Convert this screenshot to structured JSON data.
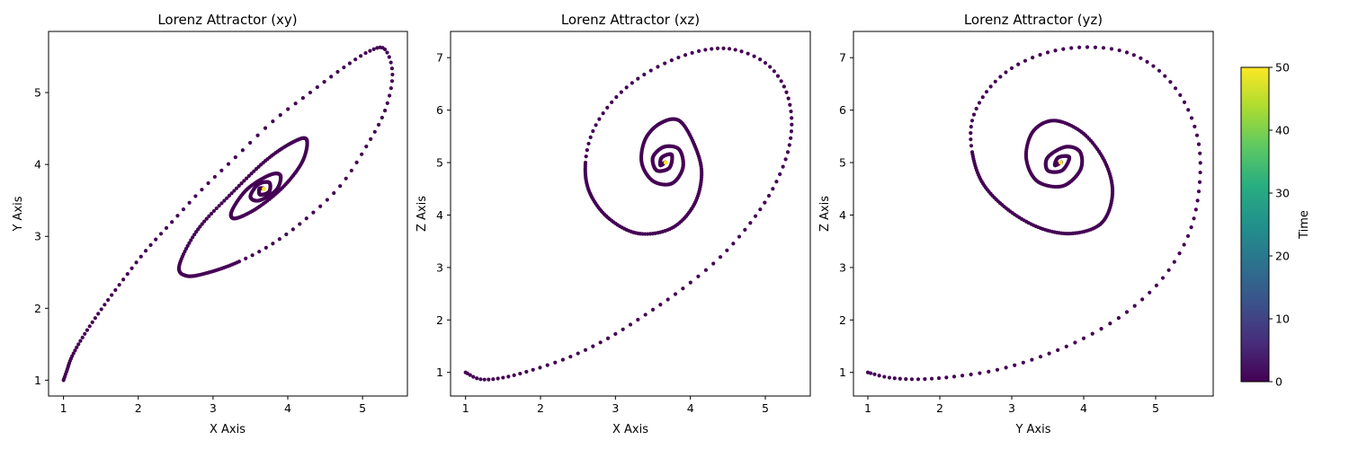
{
  "chart_data": [
    {
      "type": "scatter",
      "title": "Lorenz Attractor (xy)",
      "xlabel": "X Axis",
      "ylabel": "Y Axis",
      "xlim": [
        0.8,
        5.6
      ],
      "ylim": [
        0.78,
        5.85
      ],
      "xticks": [
        "1",
        "2",
        "3",
        "4",
        "5"
      ],
      "yticks": [
        "1",
        "2",
        "3",
        "4",
        "5"
      ],
      "x": [
        1.0,
        1.05,
        1.1,
        1.2,
        1.35,
        1.55,
        1.8,
        2.1,
        2.45,
        2.85,
        3.3,
        3.8,
        4.3,
        4.75,
        5.1,
        5.3,
        5.4,
        5.3,
        5.05,
        4.7,
        4.25,
        3.8,
        3.35,
        2.95,
        2.65,
        2.55,
        2.8,
        3.25,
        3.7,
        4.05,
        4.25,
        4.2,
        3.95,
        3.6,
        3.3,
        3.25,
        3.45,
        3.75,
        3.9,
        3.85,
        3.62,
        3.5,
        3.6,
        3.75,
        3.75,
        3.63,
        3.62,
        3.66,
        3.68
      ],
      "y": [
        1.0,
        1.15,
        1.3,
        1.5,
        1.75,
        2.05,
        2.4,
        2.8,
        3.2,
        3.65,
        4.1,
        4.6,
        5.0,
        5.35,
        5.58,
        5.6,
        5.25,
        4.75,
        4.25,
        3.7,
        3.25,
        2.9,
        2.65,
        2.5,
        2.45,
        2.6,
        3.1,
        3.6,
        4.05,
        4.3,
        4.35,
        4.05,
        3.7,
        3.4,
        3.25,
        3.35,
        3.65,
        3.85,
        3.85,
        3.65,
        3.5,
        3.55,
        3.72,
        3.75,
        3.62,
        3.58,
        3.66,
        3.67,
        3.66
      ],
      "color_var": "Time"
    },
    {
      "type": "scatter",
      "title": "Lorenz Attractor (xz)",
      "xlabel": "X Axis",
      "ylabel": "Z Axis",
      "xlim": [
        0.8,
        5.6
      ],
      "ylim": [
        0.55,
        7.5
      ],
      "xticks": [
        "1",
        "2",
        "3",
        "4",
        "5"
      ],
      "yticks": [
        "1",
        "2",
        "3",
        "4",
        "5",
        "6",
        "7"
      ],
      "x": [
        1.0,
        1.2,
        1.5,
        1.9,
        2.4,
        2.9,
        3.4,
        3.9,
        4.4,
        4.8,
        5.1,
        5.3,
        5.35,
        5.25,
        5.0,
        4.6,
        4.2,
        3.75,
        3.3,
        2.95,
        2.7,
        2.6,
        2.65,
        2.9,
        3.3,
        3.75,
        4.05,
        4.15,
        4.05,
        3.85,
        3.6,
        3.4,
        3.35,
        3.5,
        3.75,
        3.9,
        3.85,
        3.65,
        3.5,
        3.55,
        3.72,
        3.75,
        3.62,
        3.6,
        3.66,
        3.67
      ],
      "y": [
        1.0,
        0.87,
        0.9,
        1.05,
        1.3,
        1.65,
        2.1,
        2.6,
        3.2,
        3.85,
        4.5,
        5.2,
        5.85,
        6.45,
        6.9,
        7.15,
        7.15,
        6.95,
        6.6,
        6.15,
        5.6,
        5.0,
        4.45,
        3.95,
        3.65,
        3.75,
        4.2,
        4.8,
        5.35,
        5.8,
        5.75,
        5.45,
        5.0,
        4.65,
        4.6,
        4.9,
        5.25,
        5.3,
        5.1,
        4.85,
        4.9,
        5.15,
        5.1,
        4.95,
        5.0,
        5.0
      ],
      "color_var": "Time"
    },
    {
      "type": "scatter",
      "title": "Lorenz Attractor (yz)",
      "xlabel": "Y Axis",
      "ylabel": "Z Axis",
      "xlim": [
        0.8,
        5.8
      ],
      "ylim": [
        0.55,
        7.5
      ],
      "xticks": [
        "1",
        "2",
        "3",
        "4",
        "5"
      ],
      "yticks": [
        "1",
        "2",
        "3",
        "4",
        "5",
        "6",
        "7"
      ],
      "x": [
        1.0,
        1.3,
        1.7,
        2.2,
        2.8,
        3.4,
        4.0,
        4.6,
        5.1,
        5.45,
        5.6,
        5.6,
        5.4,
        5.05,
        4.6,
        4.05,
        3.5,
        3.0,
        2.65,
        2.45,
        2.45,
        2.6,
        2.95,
        3.4,
        3.85,
        4.25,
        4.4,
        4.3,
        4.0,
        3.6,
        3.3,
        3.2,
        3.35,
        3.7,
        3.95,
        3.95,
        3.75,
        3.5,
        3.5,
        3.7,
        3.8,
        3.65,
        3.6,
        3.68,
        3.68
      ],
      "y": [
        1.0,
        0.9,
        0.87,
        0.92,
        1.05,
        1.3,
        1.65,
        2.15,
        2.8,
        3.6,
        4.45,
        5.35,
        6.15,
        6.75,
        7.1,
        7.2,
        7.1,
        6.8,
        6.35,
        5.8,
        5.2,
        4.6,
        4.1,
        3.75,
        3.65,
        3.85,
        4.4,
        5.0,
        5.55,
        5.8,
        5.6,
        5.1,
        4.65,
        4.55,
        4.85,
        5.2,
        5.3,
        5.1,
        4.85,
        4.85,
        5.1,
        5.1,
        4.95,
        5.0,
        5.0
      ],
      "color_var": "Time"
    }
  ],
  "colorbar": {
    "label": "Time",
    "min": 0,
    "max": 50,
    "ticks": [
      "0",
      "10",
      "20",
      "30",
      "40",
      "50"
    ],
    "colormap": "viridis",
    "stops": [
      "#440154",
      "#472d7b",
      "#3b528b",
      "#2c728e",
      "#21918c",
      "#28ae80",
      "#5ec962",
      "#addc30",
      "#fde725"
    ]
  },
  "colors": {
    "trajectory": "#440154",
    "end_point": "#fde725"
  }
}
